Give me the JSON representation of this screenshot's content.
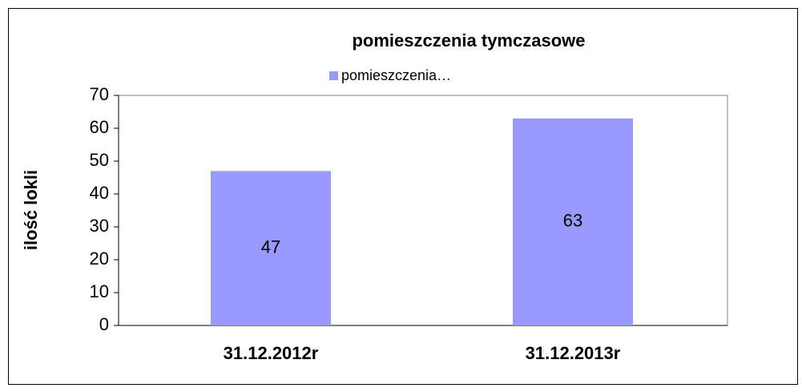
{
  "chart_data": {
    "type": "bar",
    "title": "pomieszczenia tymczasowe",
    "y_label": "ilość lokli",
    "categories": [
      "31.12.2012r",
      "31.12.2013r"
    ],
    "series": [
      {
        "name": "pomieszczenia…",
        "color": "#9999ff",
        "values": [
          47,
          63
        ]
      }
    ],
    "ylim": [
      0,
      70
    ],
    "yticks": [
      0,
      10,
      20,
      30,
      40,
      50,
      60,
      70
    ],
    "grid": false,
    "legend": "top"
  }
}
